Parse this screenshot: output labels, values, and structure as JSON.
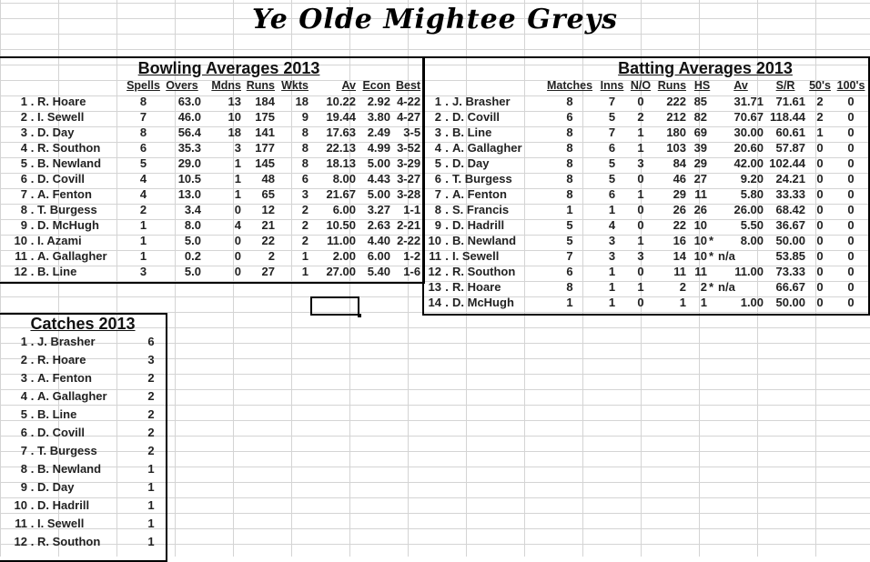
{
  "title": "Ye Olde Mightee Greys",
  "bowling": {
    "title": "Bowling Averages 2013",
    "headers": [
      "Spells",
      "Overs",
      "Mdns",
      "Runs",
      "Wkts",
      "Av",
      "Econ",
      "Best"
    ],
    "rows": [
      [
        "1",
        "R. Hoare",
        "8",
        "63.0",
        "13",
        "184",
        "18",
        "10.22",
        "2.92",
        "4-22"
      ],
      [
        "2",
        "I. Sewell",
        "7",
        "46.0",
        "10",
        "175",
        "9",
        "19.44",
        "3.80",
        "4-27"
      ],
      [
        "3",
        "D. Day",
        "8",
        "56.4",
        "18",
        "141",
        "8",
        "17.63",
        "2.49",
        "3-5"
      ],
      [
        "4",
        "R. Southon",
        "6",
        "35.3",
        "3",
        "177",
        "8",
        "22.13",
        "4.99",
        "3-52"
      ],
      [
        "5",
        "B. Newland",
        "5",
        "29.0",
        "1",
        "145",
        "8",
        "18.13",
        "5.00",
        "3-29"
      ],
      [
        "6",
        "D. Covill",
        "4",
        "10.5",
        "1",
        "48",
        "6",
        "8.00",
        "4.43",
        "3-27"
      ],
      [
        "7",
        "A. Fenton",
        "4",
        "13.0",
        "1",
        "65",
        "3",
        "21.67",
        "5.00",
        "3-28"
      ],
      [
        "8",
        "T. Burgess",
        "2",
        "3.4",
        "0",
        "12",
        "2",
        "6.00",
        "3.27",
        "1-1"
      ],
      [
        "9",
        "D. McHugh",
        "1",
        "8.0",
        "4",
        "21",
        "2",
        "10.50",
        "2.63",
        "2-21"
      ],
      [
        "10",
        "I. Azami",
        "1",
        "5.0",
        "0",
        "22",
        "2",
        "11.00",
        "4.40",
        "2-22"
      ],
      [
        "11",
        "A. Gallagher",
        "1",
        "0.2",
        "0",
        "2",
        "1",
        "2.00",
        "6.00",
        "1-2"
      ],
      [
        "12",
        "B. Line",
        "3",
        "5.0",
        "0",
        "27",
        "1",
        "27.00",
        "5.40",
        "1-6"
      ]
    ]
  },
  "batting": {
    "title": "Batting Averages 2013",
    "headers": [
      "Matches",
      "Inns",
      "N/O",
      "Runs",
      "HS",
      "Av",
      "S/R",
      "50's",
      "100's"
    ],
    "rows": [
      [
        "1",
        "J. Brasher",
        "8",
        "7",
        "0",
        "222",
        "85",
        "",
        "31.71",
        "71.61",
        "2",
        "0"
      ],
      [
        "2",
        "D. Covill",
        "6",
        "5",
        "2",
        "212",
        "82",
        "",
        "70.67",
        "118.44",
        "2",
        "0"
      ],
      [
        "3",
        "B. Line",
        "8",
        "7",
        "1",
        "180",
        "69",
        "",
        "30.00",
        "60.61",
        "1",
        "0"
      ],
      [
        "4",
        "A. Gallagher",
        "8",
        "6",
        "1",
        "103",
        "39",
        "",
        "20.60",
        "57.87",
        "0",
        "0"
      ],
      [
        "5",
        "D. Day",
        "8",
        "5",
        "3",
        "84",
        "29",
        "",
        "42.00",
        "102.44",
        "0",
        "0"
      ],
      [
        "6",
        "T. Burgess",
        "8",
        "5",
        "0",
        "46",
        "27",
        "",
        "9.20",
        "24.21",
        "0",
        "0"
      ],
      [
        "7",
        "A. Fenton",
        "8",
        "6",
        "1",
        "29",
        "11",
        "",
        "5.80",
        "33.33",
        "0",
        "0"
      ],
      [
        "8",
        "S. Francis",
        "1",
        "1",
        "0",
        "26",
        "26",
        "",
        "26.00",
        "68.42",
        "0",
        "0"
      ],
      [
        "9",
        "D. Hadrill",
        "5",
        "4",
        "0",
        "22",
        "10",
        "",
        "5.50",
        "36.67",
        "0",
        "0"
      ],
      [
        "10",
        "B. Newland",
        "5",
        "3",
        "1",
        "16",
        "10",
        "*",
        "8.00",
        "50.00",
        "0",
        "0"
      ],
      [
        "11",
        "I. Sewell",
        "7",
        "3",
        "3",
        "14",
        "10",
        "*",
        "n/a",
        "53.85",
        "0",
        "0"
      ],
      [
        "12",
        "R. Southon",
        "6",
        "1",
        "0",
        "11",
        "11",
        "",
        "11.00",
        "73.33",
        "0",
        "0"
      ],
      [
        "13",
        "R. Hoare",
        "8",
        "1",
        "1",
        "2",
        "2",
        "*",
        "n/a",
        "66.67",
        "0",
        "0"
      ],
      [
        "14",
        "D. McHugh",
        "1",
        "1",
        "0",
        "1",
        "1",
        "",
        "1.00",
        "50.00",
        "0",
        "0"
      ]
    ]
  },
  "catches": {
    "title": "Catches 2013",
    "rows": [
      [
        "1",
        "J. Brasher",
        "6"
      ],
      [
        "2",
        "R. Hoare",
        "3"
      ],
      [
        "3",
        "A. Fenton",
        "2"
      ],
      [
        "4",
        "A. Gallagher",
        "2"
      ],
      [
        "5",
        "B. Line",
        "2"
      ],
      [
        "6",
        "D. Covill",
        "2"
      ],
      [
        "7",
        "T. Burgess",
        "2"
      ],
      [
        "8",
        "B. Newland",
        "1"
      ],
      [
        "9",
        "D. Day",
        "1"
      ],
      [
        "10",
        "D. Hadrill",
        "1"
      ],
      [
        "11",
        "I. Sewell",
        "1"
      ],
      [
        "12",
        "R. Southon",
        "1"
      ]
    ]
  }
}
